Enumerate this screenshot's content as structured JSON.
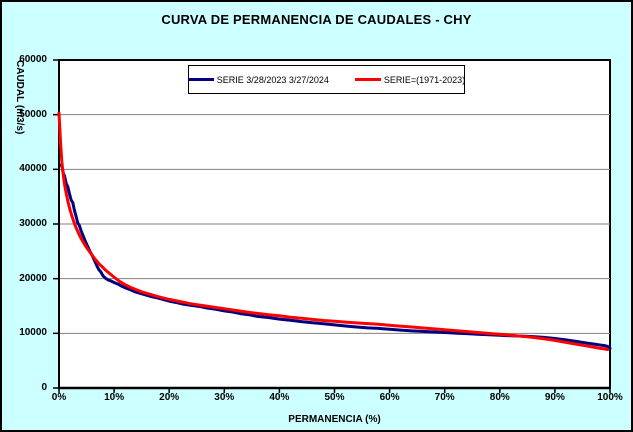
{
  "colors": {
    "background": "#CCFFFF",
    "plot_background": "#FFFFFF",
    "grid": "#808080",
    "axis": "#000000",
    "series_blue": "#000080",
    "series_red": "#FF0000"
  },
  "legend": {
    "entries": [
      {
        "label": "SERIE 3/28/2023 3/27/2024",
        "color": "#000080"
      },
      {
        "label": "SERIE=(1971-2023)",
        "color": "#FF0000"
      }
    ]
  },
  "chart_data": {
    "type": "line",
    "title": "CURVA DE PERMANENCIA DE CAUDALES - CHY",
    "xlabel": "PERMANENCIA (%)",
    "ylabel": "CAUDAL (m3/s)",
    "xlim": [
      0,
      100
    ],
    "ylim": [
      0,
      60000
    ],
    "x_ticks": [
      "0%",
      "10%",
      "20%",
      "30%",
      "40%",
      "50%",
      "60%",
      "70%",
      "80%",
      "90%",
      "100%"
    ],
    "y_ticks": [
      "0",
      "10000",
      "20000",
      "30000",
      "40000",
      "50000",
      "60000"
    ],
    "grid": "horizontal-only",
    "legend_position": "top-center",
    "series": [
      {
        "name": "SERIE 3/28/2023 3/27/2024",
        "color": "#000080",
        "points": [
          [
            0.4,
            40800
          ],
          [
            0.6,
            40300
          ],
          [
            0.8,
            39200
          ],
          [
            1.0,
            38800
          ],
          [
            1.3,
            37400
          ],
          [
            1.6,
            36800
          ],
          [
            1.9,
            35500
          ],
          [
            2.2,
            34400
          ],
          [
            2.5,
            33900
          ],
          [
            2.8,
            32500
          ],
          [
            3.1,
            31400
          ],
          [
            3.4,
            30200
          ],
          [
            3.7,
            29700
          ],
          [
            4.0,
            28800
          ],
          [
            4.4,
            27800
          ],
          [
            4.8,
            26800
          ],
          [
            5.2,
            25900
          ],
          [
            5.6,
            25000
          ],
          [
            6.0,
            24300
          ],
          [
            6.4,
            23400
          ],
          [
            6.8,
            22500
          ],
          [
            7.2,
            21700
          ],
          [
            7.6,
            21200
          ],
          [
            8.0,
            20500
          ],
          [
            8.4,
            20100
          ],
          [
            8.9,
            19800
          ],
          [
            9.4,
            19600
          ],
          [
            10.0,
            19300
          ],
          [
            10.7,
            19000
          ],
          [
            11.4,
            18600
          ],
          [
            12.1,
            18300
          ],
          [
            12.9,
            18000
          ],
          [
            13.8,
            17600
          ],
          [
            14.8,
            17300
          ],
          [
            15.8,
            17000
          ],
          [
            16.8,
            16700
          ],
          [
            17.8,
            16500
          ],
          [
            18.9,
            16200
          ],
          [
            20.0,
            15900
          ],
          [
            21.4,
            15600
          ],
          [
            22.8,
            15300
          ],
          [
            24.2,
            15100
          ],
          [
            25.6,
            14900
          ],
          [
            27.0,
            14600
          ],
          [
            28.5,
            14400
          ],
          [
            30.0,
            14100
          ],
          [
            31.5,
            13900
          ],
          [
            33.0,
            13600
          ],
          [
            34.5,
            13400
          ],
          [
            36.0,
            13100
          ],
          [
            38.0,
            12900
          ],
          [
            40.0,
            12600
          ],
          [
            42.0,
            12400
          ],
          [
            44.0,
            12150
          ],
          [
            46.0,
            11950
          ],
          [
            48.0,
            11750
          ],
          [
            50.0,
            11550
          ],
          [
            52.0,
            11350
          ],
          [
            54.0,
            11150
          ],
          [
            56.0,
            11000
          ],
          [
            58.0,
            10900
          ],
          [
            60.0,
            10750
          ],
          [
            62.0,
            10600
          ],
          [
            64.0,
            10450
          ],
          [
            66.0,
            10350
          ],
          [
            68.0,
            10250
          ],
          [
            70.0,
            10150
          ],
          [
            72.0,
            10050
          ],
          [
            74.0,
            9950
          ],
          [
            76.0,
            9850
          ],
          [
            78.0,
            9750
          ],
          [
            80.0,
            9650
          ],
          [
            82.0,
            9550
          ],
          [
            84.0,
            9500
          ],
          [
            86.0,
            9400
          ],
          [
            88.0,
            9250
          ],
          [
            90.0,
            9050
          ],
          [
            92.0,
            8800
          ],
          [
            94.0,
            8500
          ],
          [
            96.0,
            8200
          ],
          [
            97.0,
            8050
          ],
          [
            98.0,
            7900
          ],
          [
            99.0,
            7750
          ],
          [
            99.6,
            7600
          ],
          [
            100.0,
            7250
          ]
        ]
      },
      {
        "name": "SERIE=(1971-2023)",
        "color": "#FF0000",
        "points": [
          [
            0.0,
            50300
          ],
          [
            0.15,
            47500
          ],
          [
            0.3,
            44500
          ],
          [
            0.5,
            41500
          ],
          [
            0.7,
            39500
          ],
          [
            1.0,
            37300
          ],
          [
            1.3,
            35600
          ],
          [
            1.6,
            34200
          ],
          [
            2.0,
            32600
          ],
          [
            2.4,
            31300
          ],
          [
            2.8,
            30100
          ],
          [
            3.2,
            29100
          ],
          [
            3.6,
            28200
          ],
          [
            4.0,
            27400
          ],
          [
            4.5,
            26500
          ],
          [
            5.0,
            25700
          ],
          [
            5.5,
            25000
          ],
          [
            6.0,
            24300
          ],
          [
            6.6,
            23500
          ],
          [
            7.2,
            22800
          ],
          [
            7.8,
            22200
          ],
          [
            8.4,
            21600
          ],
          [
            9.0,
            21100
          ],
          [
            9.6,
            20600
          ],
          [
            10.2,
            20100
          ],
          [
            11.0,
            19500
          ],
          [
            12.0,
            18900
          ],
          [
            13.0,
            18400
          ],
          [
            14.0,
            18000
          ],
          [
            15.0,
            17600
          ],
          [
            16.0,
            17300
          ],
          [
            17.0,
            17000
          ],
          [
            18.0,
            16700
          ],
          [
            19.0,
            16450
          ],
          [
            20.0,
            16200
          ],
          [
            22.0,
            15800
          ],
          [
            24.0,
            15400
          ],
          [
            26.0,
            15100
          ],
          [
            28.0,
            14800
          ],
          [
            30.0,
            14500
          ],
          [
            32.0,
            14200
          ],
          [
            34.0,
            13900
          ],
          [
            36.0,
            13650
          ],
          [
            38.0,
            13400
          ],
          [
            40.0,
            13200
          ],
          [
            42.0,
            12950
          ],
          [
            44.0,
            12750
          ],
          [
            46.0,
            12550
          ],
          [
            48.0,
            12350
          ],
          [
            50.0,
            12200
          ],
          [
            52.0,
            12050
          ],
          [
            55.0,
            11850
          ],
          [
            58.0,
            11650
          ],
          [
            61.0,
            11400
          ],
          [
            64.0,
            11150
          ],
          [
            67.0,
            10900
          ],
          [
            70.0,
            10650
          ],
          [
            73.0,
            10400
          ],
          [
            76.0,
            10150
          ],
          [
            79.0,
            9900
          ],
          [
            82.0,
            9650
          ],
          [
            84.0,
            9450
          ],
          [
            86.0,
            9250
          ],
          [
            88.0,
            9000
          ],
          [
            90.0,
            8700
          ],
          [
            92.0,
            8350
          ],
          [
            94.0,
            8000
          ],
          [
            96.0,
            7650
          ],
          [
            98.0,
            7300
          ],
          [
            99.0,
            7150
          ],
          [
            99.6,
            7050
          ]
        ]
      }
    ]
  }
}
